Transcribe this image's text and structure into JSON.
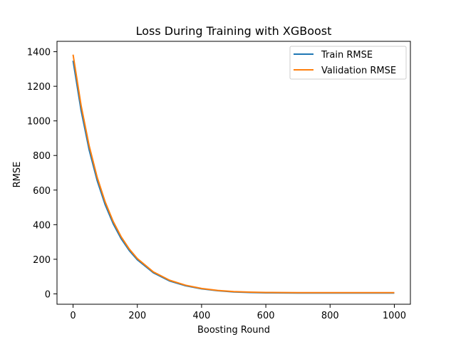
{
  "chart_data": {
    "type": "line",
    "title": "Loss During Training with XGBoost",
    "xlabel": "Boosting Round",
    "ylabel": "RMSE",
    "xlim": [
      -50,
      1050
    ],
    "ylim": [
      -60,
      1460
    ],
    "xticks": [
      0,
      200,
      400,
      600,
      800,
      1000
    ],
    "yticks": [
      0,
      200,
      400,
      600,
      800,
      1000,
      1200,
      1400
    ],
    "grid": false,
    "legend_placement": "upper right",
    "series": [
      {
        "name": "Train RMSE",
        "color": "#1f77b4",
        "x": [
          0,
          25,
          50,
          75,
          100,
          125,
          150,
          175,
          200,
          250,
          300,
          350,
          400,
          450,
          500,
          550,
          600,
          700,
          800,
          900,
          1000
        ],
        "values": [
          1348,
          1060,
          833,
          655,
          515,
          405,
          318,
          250,
          197,
          122,
          75,
          47,
          29,
          18,
          11,
          8,
          6,
          5,
          5,
          5,
          5
        ]
      },
      {
        "name": "Validation RMSE",
        "color": "#ff7f0e",
        "x": [
          0,
          25,
          50,
          75,
          100,
          125,
          150,
          175,
          200,
          250,
          300,
          350,
          400,
          450,
          500,
          550,
          600,
          700,
          800,
          900,
          1000
        ],
        "values": [
          1383,
          1089,
          857,
          674,
          531,
          418,
          329,
          259,
          204,
          127,
          79,
          50,
          31,
          20,
          13,
          10,
          8,
          7,
          7,
          7,
          7
        ]
      }
    ]
  }
}
